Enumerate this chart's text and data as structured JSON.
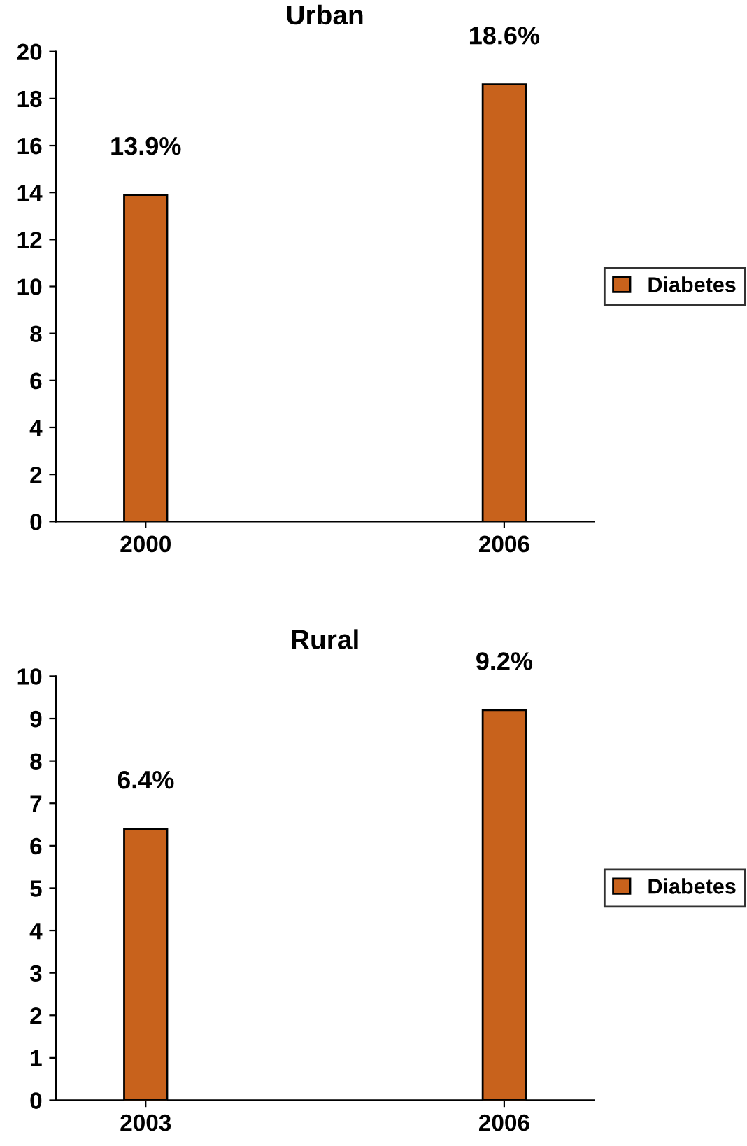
{
  "chart_data": [
    {
      "type": "bar",
      "title": "Urban",
      "categories": [
        "2000",
        "2006"
      ],
      "series": [
        {
          "name": "Diabetes",
          "color": "#c8621c",
          "values": [
            13.9,
            18.6
          ],
          "value_labels": [
            "13.9%",
            "18.6%"
          ]
        }
      ],
      "ylim": [
        0,
        20
      ],
      "yticks": [
        0,
        2,
        4,
        6,
        8,
        10,
        12,
        14,
        16,
        18,
        20
      ],
      "legend": "right",
      "grid": false
    },
    {
      "type": "bar",
      "title": "Rural",
      "categories": [
        "2003",
        "2006"
      ],
      "series": [
        {
          "name": "Diabetes",
          "color": "#c8621c",
          "values": [
            6.4,
            9.2
          ],
          "value_labels": [
            "6.4%",
            "9.2%"
          ]
        }
      ],
      "ylim": [
        0,
        10
      ],
      "yticks": [
        0,
        1,
        2,
        3,
        4,
        5,
        6,
        7,
        8,
        9,
        10
      ],
      "legend": "right",
      "grid": false
    }
  ]
}
